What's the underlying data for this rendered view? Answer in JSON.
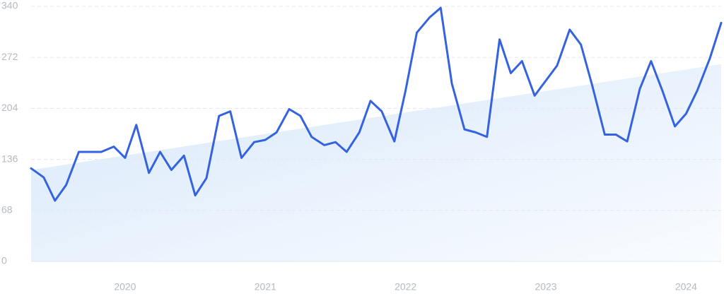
{
  "chart_data": {
    "type": "line",
    "x": [
      2019.33,
      2019.42,
      2019.5,
      2019.58,
      2019.67,
      2019.75,
      2019.83,
      2019.92,
      2020,
      2020.08,
      2020.17,
      2020.25,
      2020.33,
      2020.42,
      2020.5,
      2020.58,
      2020.67,
      2020.75,
      2020.83,
      2020.92,
      2021,
      2021.08,
      2021.17,
      2021.25,
      2021.33,
      2021.42,
      2021.5,
      2021.58,
      2021.67,
      2021.75,
      2021.83,
      2021.92,
      2022,
      2022.08,
      2022.17,
      2022.25,
      2022.33,
      2022.42,
      2022.5,
      2022.58,
      2022.67,
      2022.75,
      2022.83,
      2022.92,
      2023,
      2023.08,
      2023.17,
      2023.25,
      2023.33,
      2023.42,
      2023.5,
      2023.58,
      2023.67,
      2023.75,
      2023.83,
      2023.92,
      2024,
      2024.08,
      2024.17,
      2024.25
    ],
    "series": [
      {
        "color": "#3563e0",
        "values": [
          124,
          112,
          81,
          102,
          146,
          146,
          146,
          153,
          138,
          182,
          118,
          146,
          122,
          141,
          88,
          111,
          194,
          200,
          138,
          159,
          162,
          172,
          203,
          194,
          166,
          155,
          159,
          146,
          172,
          214,
          200,
          160,
          228,
          305,
          325,
          338,
          237,
          176,
          172,
          166,
          296,
          251,
          267,
          221,
          241,
          261,
          309,
          289,
          235,
          169,
          169,
          160,
          230,
          267,
          228,
          180,
          197,
          228,
          271,
          318
        ]
      }
    ],
    "trend": {
      "color": "#d8e8fb",
      "x": [
        2019.33,
        2024.25
      ],
      "values": [
        122,
        263
      ]
    },
    "xlim": [
      2019.33,
      2024.25
    ],
    "xticks": [
      2020,
      2021,
      2022,
      2023,
      2024
    ],
    "ylim": [
      0,
      340
    ],
    "yticks": [
      0,
      68,
      136,
      204,
      272,
      340
    ],
    "grid": true
  }
}
